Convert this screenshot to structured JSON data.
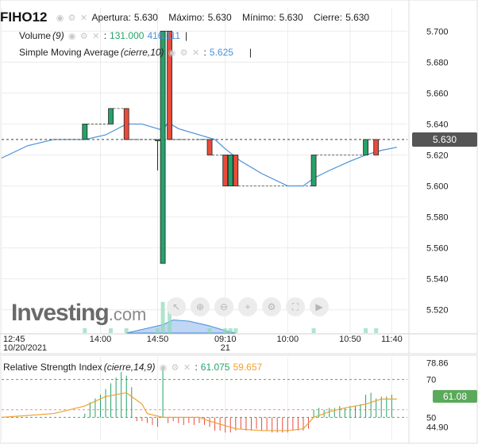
{
  "symbol": "FIHO12",
  "ohlc": {
    "open_label": "Apertura:",
    "open": "5.630",
    "high_label": "Máximo:",
    "high": "5.630",
    "low_label": "Mínimo:",
    "low": "5.630",
    "close_label": "Cierre:",
    "close": "5.630"
  },
  "volume_legend": {
    "label": "Volume",
    "param": "(9)",
    "value1": "131.000",
    "value2": "416.111"
  },
  "sma_legend": {
    "label": "Simple Moving Average",
    "param": "(cierre,10)",
    "value": "5.625"
  },
  "rsi_legend": {
    "label": "Relative Strength Index",
    "param": "(cierre,14,9)",
    "value1": "61.075",
    "value2": "59.657"
  },
  "logo": {
    "name": "Investing",
    "suffix": ".com"
  },
  "toolbar_icons": [
    "select-icon",
    "zoom-in-icon",
    "zoom-out-icon",
    "add-indicator-icon",
    "settings-icon",
    "fullscreen-icon",
    "play-icon"
  ],
  "colors": {
    "up": "#26a269",
    "down": "#e74c3c",
    "sma": "#4a90d9",
    "rsi": "#f0a030",
    "volume_fill": "#a9c8f0",
    "price_badge": "#555555",
    "rsi_badge": "#5ba95b",
    "grid": "#ececec",
    "dashed_green": "#4caf50",
    "dashed_red": "#e74c3c"
  },
  "price_axis": {
    "ticks": [
      "5.700",
      "5.680",
      "5.660",
      "5.640",
      "5.620",
      "5.600",
      "5.580",
      "5.560",
      "5.540",
      "5.520"
    ],
    "current": "5.630"
  },
  "time_axis": {
    "labels": [
      {
        "line1": "12:45",
        "line2": "10/20/2021"
      },
      {
        "line1": "14:00",
        "line2": ""
      },
      {
        "line1": "14:50",
        "line2": ""
      },
      {
        "line1": "09:10",
        "line2": "21"
      },
      {
        "line1": "10:00",
        "line2": ""
      },
      {
        "line1": "10:50",
        "line2": ""
      },
      {
        "line1": "11:40",
        "line2": ""
      }
    ]
  },
  "rsi_axis": {
    "ticks": [
      "78.86",
      "70",
      "50",
      "44.90"
    ],
    "current": "61.08",
    "overbought": 70,
    "oversold": 50
  },
  "chart_data": {
    "type": "candlestick",
    "price_ylim": [
      5.505,
      5.715
    ],
    "candles": [
      {
        "t": 16,
        "o": 5.63,
        "h": 5.64,
        "l": 5.63,
        "c": 5.64
      },
      {
        "t": 21,
        "o": 5.64,
        "h": 5.65,
        "l": 5.64,
        "c": 5.65
      },
      {
        "t": 24,
        "o": 5.65,
        "h": 5.65,
        "l": 5.63,
        "c": 5.63
      },
      {
        "t": 30,
        "o": 5.63,
        "h": 5.63,
        "l": 5.61,
        "c": 5.63
      },
      {
        "t": 31,
        "o": 5.55,
        "h": 5.7,
        "l": 5.55,
        "c": 5.7
      },
      {
        "t": 32.3,
        "o": 5.7,
        "h": 5.7,
        "l": 5.63,
        "c": 5.63
      },
      {
        "t": 40,
        "o": 5.63,
        "h": 5.63,
        "l": 5.62,
        "c": 5.62
      },
      {
        "t": 43,
        "o": 5.62,
        "h": 5.62,
        "l": 5.6,
        "c": 5.6
      },
      {
        "t": 44,
        "o": 5.6,
        "h": 5.62,
        "l": 5.6,
        "c": 5.62
      },
      {
        "t": 45,
        "o": 5.62,
        "h": 5.62,
        "l": 5.6,
        "c": 5.6
      },
      {
        "t": 60,
        "o": 5.6,
        "h": 5.62,
        "l": 5.6,
        "c": 5.62
      },
      {
        "t": 70,
        "o": 5.62,
        "h": 5.63,
        "l": 5.62,
        "c": 5.63
      },
      {
        "t": 72,
        "o": 5.63,
        "h": 5.63,
        "l": 5.62,
        "c": 5.62
      }
    ],
    "sma": {
      "t": [
        0,
        5,
        10,
        16,
        20,
        24,
        27,
        30,
        31,
        32,
        34,
        38,
        41,
        43,
        46,
        50,
        55,
        58,
        60,
        63,
        67,
        70,
        73,
        76
      ],
      "y": [
        5.618,
        5.626,
        5.63,
        5.63,
        5.633,
        5.64,
        5.64,
        5.637,
        5.636,
        5.641,
        5.637,
        5.633,
        5.63,
        5.624,
        5.616,
        5.608,
        5.6,
        5.6,
        5.605,
        5.61,
        5.616,
        5.62,
        5.623,
        5.625
      ]
    },
    "volume": {
      "t": [
        16,
        21,
        24,
        30,
        31,
        32.3,
        40,
        43,
        44,
        45,
        60,
        70,
        72
      ],
      "v": [
        20,
        20,
        20,
        20,
        131,
        131,
        20,
        20,
        20,
        20,
        20,
        20,
        20
      ]
    },
    "volume_ma": {
      "t": [
        24,
        28,
        31,
        33,
        36,
        40,
        43,
        45
      ],
      "v": [
        0,
        20,
        35,
        55,
        50,
        30,
        10,
        0
      ]
    },
    "rsi_ylim": [
      38,
      82
    ],
    "rsi_bars": {
      "t": [
        16,
        17,
        18,
        19,
        20,
        21,
        22,
        23,
        24,
        25,
        26,
        27,
        28,
        29,
        30,
        31,
        32,
        33,
        34,
        35,
        36,
        37,
        38,
        39,
        40,
        41,
        42,
        43,
        44,
        45,
        46,
        47,
        48,
        49,
        50,
        51,
        52,
        53,
        54,
        55,
        56,
        57,
        58,
        59,
        60,
        61,
        62,
        63,
        64,
        65,
        66,
        67,
        68,
        69,
        70,
        71,
        72,
        73,
        74,
        75
      ],
      "v": [
        52,
        58,
        60,
        62,
        65,
        68,
        71,
        74,
        72,
        66,
        48,
        48,
        47,
        46,
        45,
        76,
        47,
        48,
        47,
        46,
        47,
        46,
        47,
        46,
        45,
        43,
        43,
        42,
        42,
        43,
        44,
        43,
        43,
        44,
        43,
        43,
        42,
        42,
        42,
        42,
        43,
        43,
        43,
        44,
        54,
        55,
        54,
        55,
        55,
        56,
        55,
        56,
        56,
        57,
        62,
        63,
        60,
        61,
        61,
        62
      ]
    },
    "rsi_line": {
      "t": [
        0,
        10,
        16,
        20,
        24,
        27,
        28,
        31,
        34,
        38,
        40,
        45,
        50,
        55,
        58,
        60,
        63,
        66,
        70,
        73,
        76
      ],
      "y": [
        50,
        52,
        56,
        61,
        63,
        57,
        52,
        50,
        50,
        50,
        48,
        44,
        43,
        43,
        44,
        50,
        53,
        55,
        57,
        59.7,
        59.7
      ]
    }
  }
}
